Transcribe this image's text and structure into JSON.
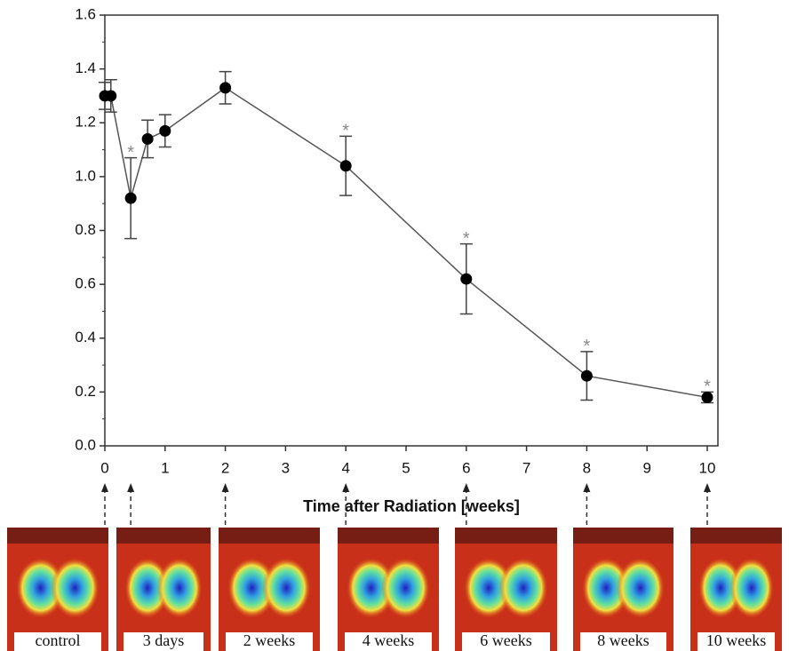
{
  "chart_data": {
    "type": "line",
    "xlabel": "Time after Radiation [weeks]",
    "x": [
      0,
      0.1,
      0.43,
      0.71,
      1,
      2,
      4,
      6,
      8,
      10
    ],
    "series": [
      {
        "color": "#000000",
        "values": [
          1.3,
          1.3,
          0.92,
          1.14,
          1.17,
          1.33,
          1.04,
          0.62,
          0.26,
          0.18
        ],
        "errors": [
          0.05,
          0.06,
          0.15,
          0.07,
          0.06,
          0.06,
          0.11,
          0.13,
          0.09,
          0.02
        ]
      }
    ],
    "xlim": [
      0,
      10
    ],
    "ylim": [
      0,
      1.6
    ],
    "xticks": [
      0,
      1,
      2,
      3,
      4,
      5,
      6,
      7,
      8,
      9,
      10
    ],
    "yticks": [
      {
        "value": 0,
        "label": "0.0"
      },
      0.2,
      0.4,
      0.6,
      0.8,
      {
        "value": 1,
        "label": "1.0"
      },
      1.2,
      1.4,
      1.6
    ],
    "annotations": [
      {
        "text": "*",
        "x": 0.43
      },
      {
        "text": "*",
        "x": 4
      },
      {
        "text": "*",
        "x": 6
      },
      {
        "text": "*",
        "x": 8
      },
      {
        "text": "*",
        "x": 10
      }
    ],
    "images": [
      {
        "label": "control",
        "x": 0
      },
      {
        "label": "3 days",
        "x": 0.43
      },
      {
        "label": "2 weeks",
        "x": 2
      },
      {
        "label": "4 weeks",
        "x": 4
      },
      {
        "label": "6 weeks",
        "x": 6
      },
      {
        "label": "8 weeks",
        "x": 8
      },
      {
        "label": "10 weeks",
        "x": 10
      }
    ]
  }
}
